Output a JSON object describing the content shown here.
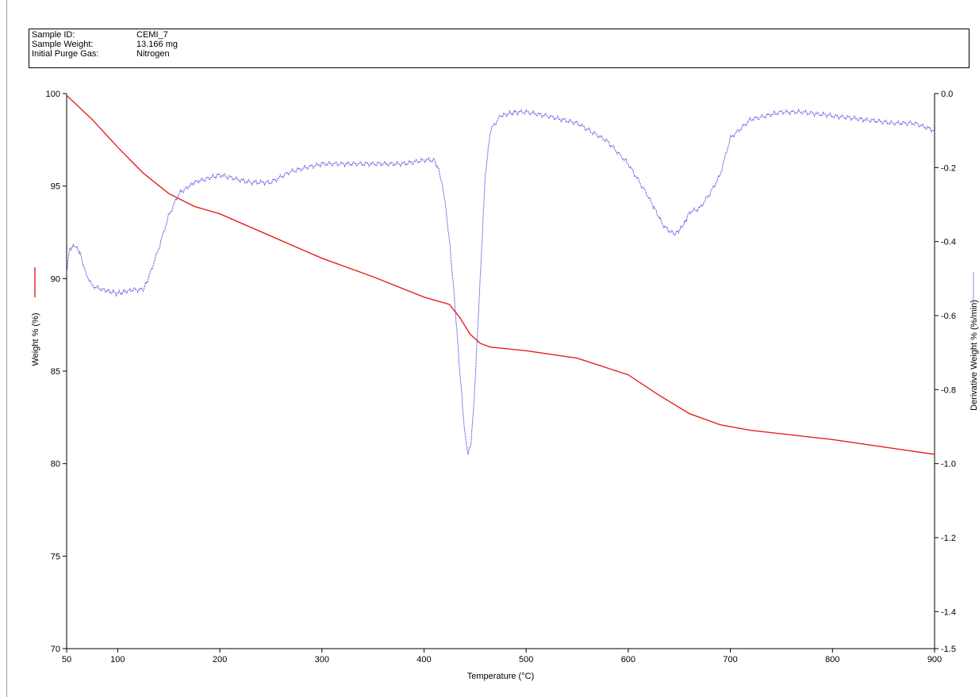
{
  "info": {
    "sample_id_label": "Sample ID:",
    "sample_id": "CEMI_7",
    "sample_weight_label": "Sample Weight:",
    "sample_weight": "13.166 mg",
    "purge_gas_label": "Initial Purge Gas:",
    "purge_gas": "Nitrogen"
  },
  "chart_data": {
    "type": "line",
    "xlabel": "Temperature (°C)",
    "ylabel_left": "Weight % (%)",
    "ylabel_right": "Derivative Weight % (%/min)",
    "xlim": [
      50,
      900
    ],
    "ylim_left": [
      70,
      100
    ],
    "ylim_right": [
      -1.5,
      0.0
    ],
    "x_ticks": [
      50,
      100,
      200,
      300,
      400,
      500,
      600,
      700,
      800,
      900
    ],
    "y_left_ticks": [
      100,
      95,
      90,
      85,
      80,
      75,
      70
    ],
    "y_right_ticks": [
      "0.0",
      "-0.2",
      "-0.4",
      "-0.6",
      "-0.8",
      "-1.0",
      "-1.2",
      "-1.4",
      "-1.5"
    ],
    "grid": false,
    "colors": {
      "weight": "#e8201c",
      "derivative": "#3a3ae0"
    },
    "series": [
      {
        "axis": "left",
        "x": [
          50,
          75,
          100,
          125,
          150,
          175,
          200,
          250,
          300,
          350,
          400,
          425,
          435,
          445,
          455,
          465,
          500,
          550,
          600,
          630,
          660,
          690,
          720,
          800,
          850,
          900
        ],
        "values": [
          99.9,
          98.6,
          97.1,
          95.7,
          94.6,
          93.9,
          93.5,
          92.3,
          91.1,
          90.1,
          89.0,
          88.6,
          87.9,
          87.0,
          86.5,
          86.3,
          86.1,
          85.7,
          84.8,
          83.7,
          82.7,
          82.1,
          81.8,
          81.3,
          80.9,
          80.5
        ]
      },
      {
        "axis": "right",
        "x": [
          50,
          53,
          58,
          63,
          68,
          75,
          85,
          100,
          115,
          125,
          130,
          140,
          150,
          160,
          175,
          200,
          230,
          250,
          270,
          300,
          330,
          350,
          380,
          400,
          410,
          415,
          420,
          425,
          430,
          435,
          440,
          443,
          446,
          450,
          455,
          460,
          465,
          475,
          490,
          500,
          520,
          550,
          580,
          600,
          620,
          635,
          645,
          650,
          655,
          660,
          670,
          680,
          690,
          700,
          720,
          750,
          770,
          800,
          830,
          860,
          880,
          900
        ],
        "values": [
          -0.48,
          -0.42,
          -0.41,
          -0.43,
          -0.48,
          -0.52,
          -0.53,
          -0.54,
          -0.53,
          -0.53,
          -0.5,
          -0.42,
          -0.33,
          -0.27,
          -0.24,
          -0.22,
          -0.24,
          -0.24,
          -0.21,
          -0.19,
          -0.19,
          -0.19,
          -0.19,
          -0.18,
          -0.18,
          -0.21,
          -0.28,
          -0.4,
          -0.56,
          -0.75,
          -0.92,
          -0.97,
          -0.95,
          -0.78,
          -0.5,
          -0.22,
          -0.1,
          -0.06,
          -0.05,
          -0.05,
          -0.06,
          -0.08,
          -0.13,
          -0.19,
          -0.28,
          -0.36,
          -0.38,
          -0.37,
          -0.35,
          -0.32,
          -0.31,
          -0.27,
          -0.22,
          -0.12,
          -0.07,
          -0.05,
          -0.05,
          -0.06,
          -0.07,
          -0.08,
          -0.08,
          -0.1
        ]
      }
    ]
  }
}
